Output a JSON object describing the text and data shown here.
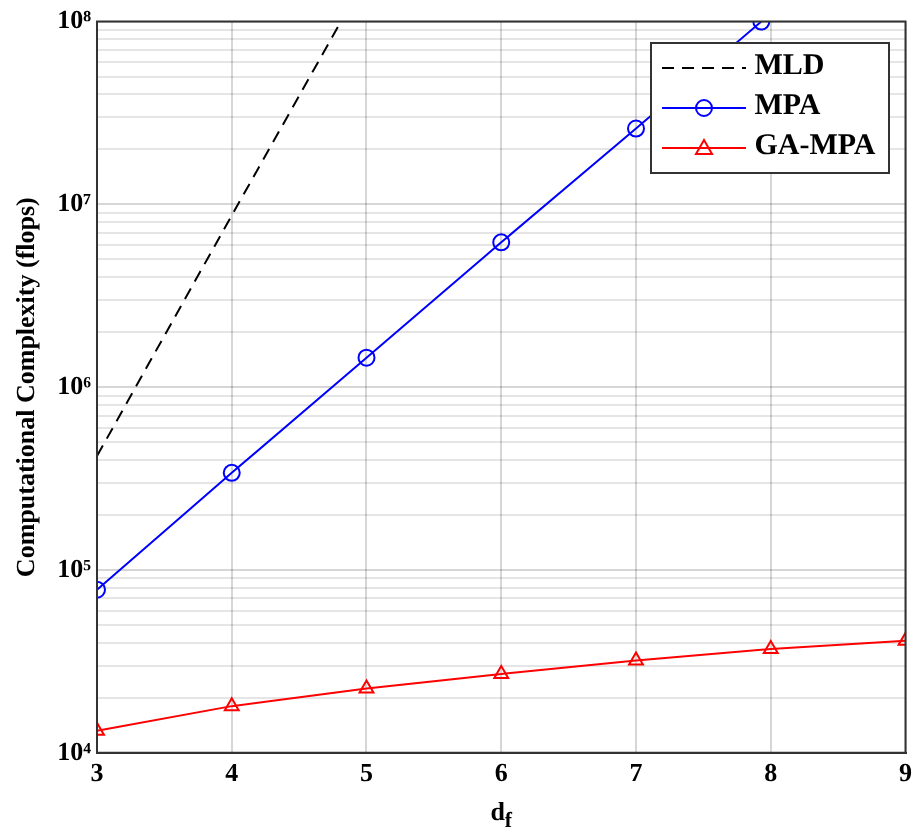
{
  "chart_data": {
    "type": "line",
    "xlabel": "d$_{f}$",
    "ylabel": "Computational Complexity (flops)",
    "log": "y",
    "grid": true,
    "legend": "top right",
    "xlim": [
      3,
      9
    ],
    "xticks": [
      3,
      4,
      5,
      6,
      7,
      8,
      9
    ],
    "ylim": [
      10000,
      100000000
    ],
    "yticks": [
      {
        "value": 10000,
        "label": "10⁴"
      },
      {
        "value": 20000,
        "label": null
      },
      {
        "value": 30000,
        "label": null
      },
      {
        "value": 40000,
        "label": null
      },
      {
        "value": 50000,
        "label": null
      },
      {
        "value": 60000,
        "label": null
      },
      {
        "value": 70000,
        "label": null
      },
      {
        "value": 80000,
        "label": null
      },
      {
        "value": 90000,
        "label": null
      },
      {
        "value": 100000,
        "label": "10⁵"
      },
      {
        "value": 200000,
        "label": null
      },
      {
        "value": 300000,
        "label": null
      },
      {
        "value": 400000,
        "label": null
      },
      {
        "value": 500000,
        "label": null
      },
      {
        "value": 600000,
        "label": null
      },
      {
        "value": 700000,
        "label": null
      },
      {
        "value": 800000,
        "label": null
      },
      {
        "value": 900000,
        "label": null
      },
      {
        "value": 1000000,
        "label": "10⁶"
      },
      {
        "value": 2000000,
        "label": null
      },
      {
        "value": 3000000,
        "label": null
      },
      {
        "value": 4000000,
        "label": null
      },
      {
        "value": 5000000,
        "label": null
      },
      {
        "value": 6000000,
        "label": null
      },
      {
        "value": 7000000,
        "label": null
      },
      {
        "value": 8000000,
        "label": null
      },
      {
        "value": 9000000,
        "label": null
      },
      {
        "value": 10000000,
        "label": "10⁷"
      },
      {
        "value": 20000000,
        "label": null
      },
      {
        "value": 30000000,
        "label": null
      },
      {
        "value": 40000000,
        "label": null
      },
      {
        "value": 50000000,
        "label": null
      },
      {
        "value": 60000000,
        "label": null
      },
      {
        "value": 70000000,
        "label": null
      },
      {
        "value": 80000000,
        "label": null
      },
      {
        "value": 90000000,
        "label": null
      },
      {
        "value": 100000000,
        "label": "10⁸"
      }
    ],
    "series": [
      {
        "name": "MLD",
        "color": "#000000",
        "line_style": "dashed",
        "marker": "none",
        "x": [
          3,
          4,
          4.81
        ],
        "values": [
          420000,
          8700000,
          100000000
        ]
      },
      {
        "name": "MPA",
        "color": "#0000ff",
        "line_style": "solid",
        "marker": "circle",
        "x": [
          3,
          4,
          5,
          6,
          7,
          7.93
        ],
        "values": [
          78000,
          340000,
          1450000,
          6200000,
          26000000,
          100000000
        ]
      },
      {
        "name": "GA-MPA",
        "color": "#ff0000",
        "line_style": "solid",
        "marker": "triangle",
        "x": [
          3,
          4,
          5,
          6,
          7,
          8,
          9
        ],
        "values": [
          13200,
          18000,
          22500,
          27000,
          32000,
          37000,
          41000
        ]
      }
    ]
  }
}
